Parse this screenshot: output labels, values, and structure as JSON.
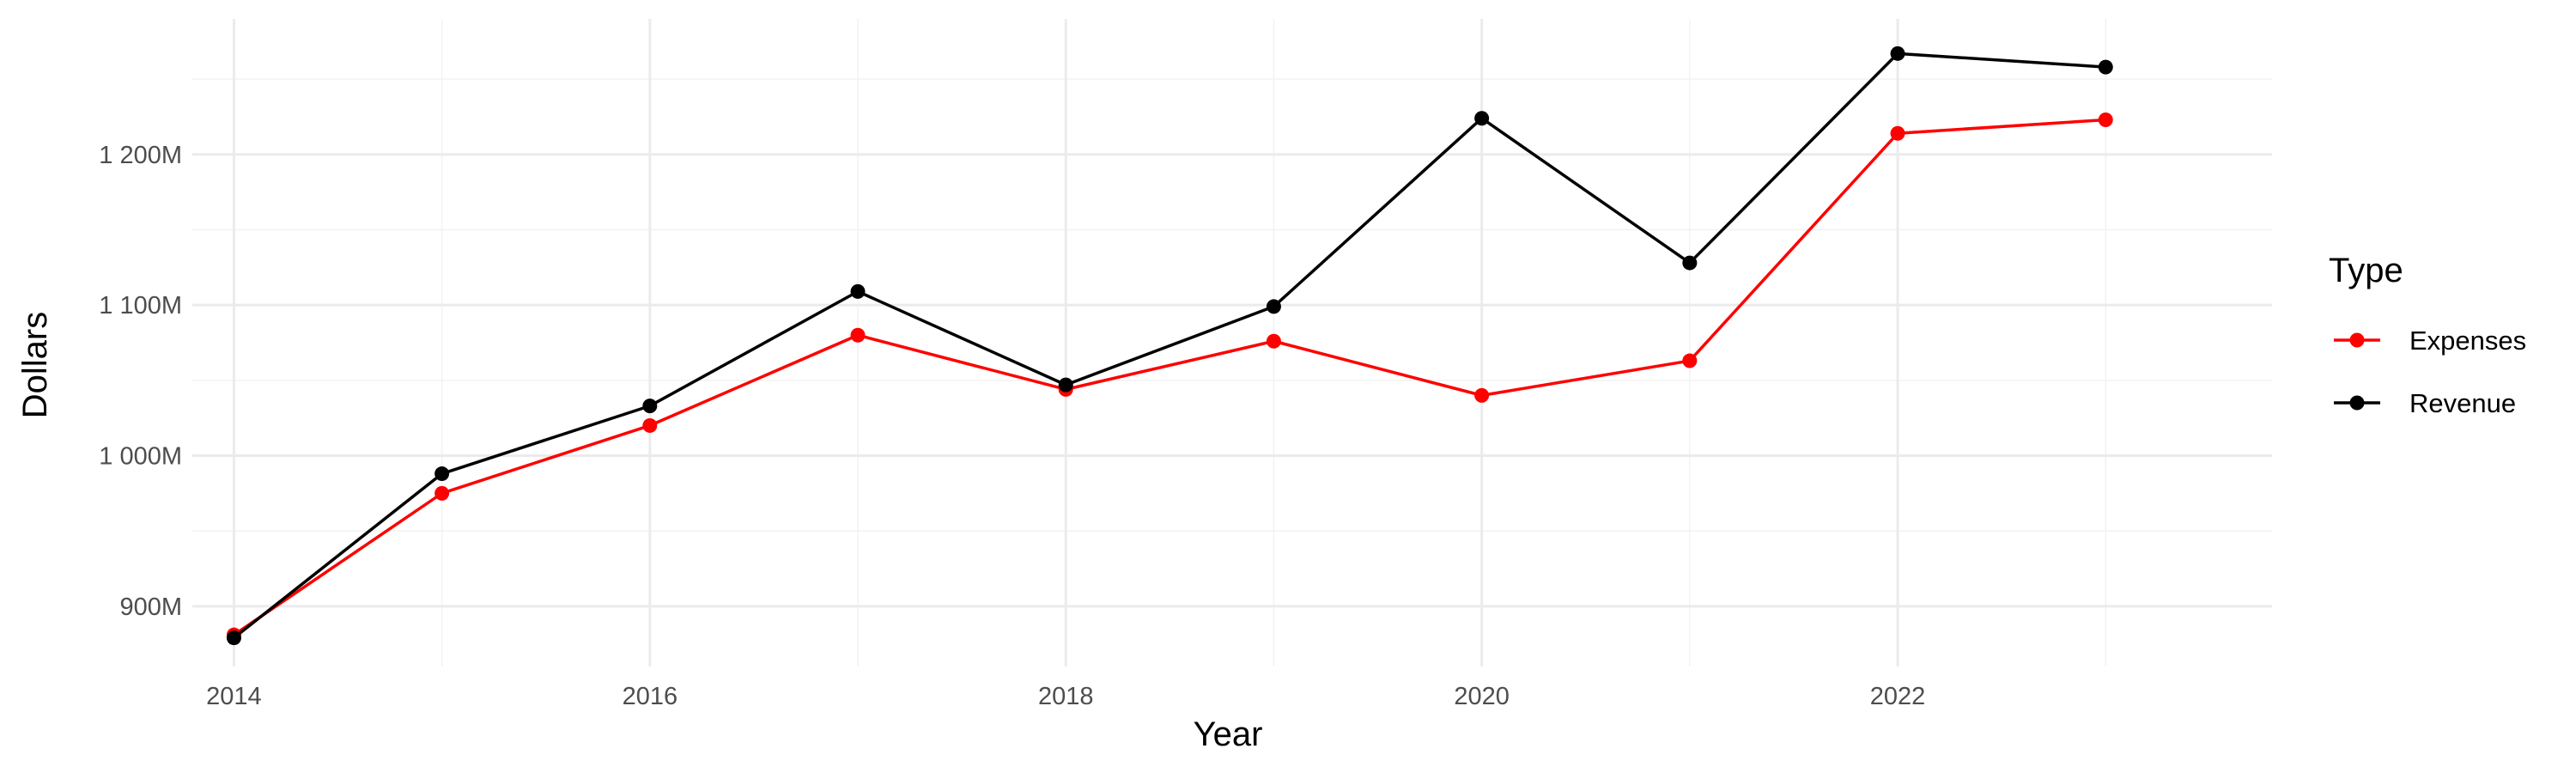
{
  "chart_data": {
    "type": "line",
    "x": [
      2014,
      2015,
      2016,
      2017,
      2018,
      2019,
      2020,
      2021,
      2022,
      2023
    ],
    "series": [
      {
        "name": "Expenses",
        "color": "#ff0000",
        "values": [
          881,
          975,
          1020,
          1080,
          1044,
          1076,
          1040,
          1063,
          1214,
          1223
        ]
      },
      {
        "name": "Revenue",
        "color": "#000000",
        "values": [
          879,
          988,
          1033,
          1109,
          1047,
          1099,
          1224,
          1128,
          1267,
          1258
        ]
      }
    ],
    "xlabel": "Year",
    "ylabel": "Dollars",
    "xlim": [
      2013.8,
      2023.8
    ],
    "ylim": [
      860,
      1290
    ],
    "x_ticks": [
      2014,
      2016,
      2018,
      2020,
      2022
    ],
    "x_tick_labels": [
      "2014",
      "2016",
      "2018",
      "2020",
      "2022"
    ],
    "y_ticks": [
      900,
      1000,
      1100,
      1200
    ],
    "y_tick_labels": [
      "900M",
      "1 000M",
      "1 100M",
      "1 200M"
    ],
    "legend": {
      "title": "Type",
      "position": "right"
    },
    "grid": true
  }
}
